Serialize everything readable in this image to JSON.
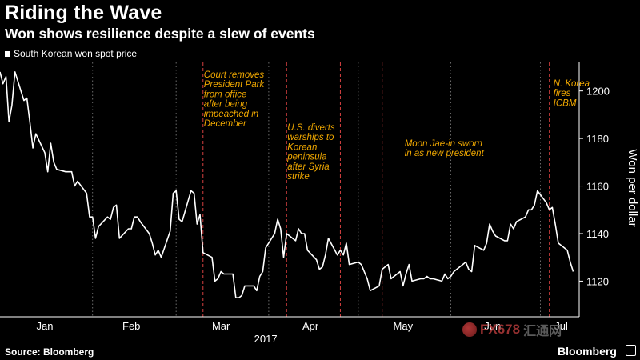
{
  "header": {
    "title": "Riding the Wave",
    "subtitle": "Won shows resilience despite a slew of events"
  },
  "footer": {
    "source": "Source: Bloomberg",
    "brand": "Bloomberg",
    "watermark_text": "FX678",
    "watermark_cn": "汇通网"
  },
  "colors": {
    "background": "#000000",
    "line": "#ffffff",
    "annotation": "#f0a800",
    "event_line": "#d64040",
    "month_line": "#6a6a6a"
  },
  "chart_data": {
    "type": "line",
    "title": "Riding the Wave",
    "subtitle": "Won shows resilience despite a slew of events",
    "ylabel": "Won per dollar",
    "xlabel": "2017",
    "y_axis_position": "right",
    "ylim": [
      1105,
      1212
    ],
    "yticks": [
      1120,
      1140,
      1160,
      1180,
      1200
    ],
    "xlim": [
      "2017-01-01",
      "2017-07-14"
    ],
    "x_ticks": [
      {
        "label": "Jan",
        "center": "2017-01-16"
      },
      {
        "label": "Feb",
        "center": "2017-02-14"
      },
      {
        "label": "Mar",
        "center": "2017-03-16"
      },
      {
        "label": "Apr",
        "center": "2017-04-15"
      },
      {
        "label": "May",
        "center": "2017-05-16"
      },
      {
        "label": "Jun",
        "center": "2017-06-15"
      },
      {
        "label": "Jul",
        "center": "2017-07-08"
      }
    ],
    "month_boundaries": [
      "2017-02-01",
      "2017-03-01",
      "2017-04-01",
      "2017-05-01",
      "2017-06-01",
      "2017-07-01"
    ],
    "legend": {
      "placement": "top-left",
      "entries": [
        "South Korean won spot price"
      ]
    },
    "grid": false,
    "series": [
      {
        "name": "South Korean won spot price",
        "x": [
          "2017-01-01",
          "2017-01-02",
          "2017-01-03",
          "2017-01-04",
          "2017-01-05",
          "2017-01-06",
          "2017-01-09",
          "2017-01-10",
          "2017-01-11",
          "2017-01-12",
          "2017-01-13",
          "2017-01-16",
          "2017-01-17",
          "2017-01-18",
          "2017-01-19",
          "2017-01-20",
          "2017-01-23",
          "2017-01-24",
          "2017-01-25",
          "2017-01-26",
          "2017-01-27",
          "2017-01-30",
          "2017-01-31",
          "2017-02-01",
          "2017-02-02",
          "2017-02-03",
          "2017-02-06",
          "2017-02-07",
          "2017-02-08",
          "2017-02-09",
          "2017-02-10",
          "2017-02-13",
          "2017-02-14",
          "2017-02-15",
          "2017-02-16",
          "2017-02-17",
          "2017-02-20",
          "2017-02-21",
          "2017-02-22",
          "2017-02-23",
          "2017-02-24",
          "2017-02-27",
          "2017-02-28",
          "2017-03-01",
          "2017-03-02",
          "2017-03-03",
          "2017-03-06",
          "2017-03-07",
          "2017-03-08",
          "2017-03-09",
          "2017-03-10",
          "2017-03-13",
          "2017-03-14",
          "2017-03-15",
          "2017-03-16",
          "2017-03-17",
          "2017-03-20",
          "2017-03-21",
          "2017-03-22",
          "2017-03-23",
          "2017-03-24",
          "2017-03-27",
          "2017-03-28",
          "2017-03-29",
          "2017-03-30",
          "2017-03-31",
          "2017-04-03",
          "2017-04-04",
          "2017-04-05",
          "2017-04-06",
          "2017-04-07",
          "2017-04-10",
          "2017-04-11",
          "2017-04-12",
          "2017-04-13",
          "2017-04-14",
          "2017-04-17",
          "2017-04-18",
          "2017-04-19",
          "2017-04-20",
          "2017-04-21",
          "2017-04-24",
          "2017-04-25",
          "2017-04-26",
          "2017-04-27",
          "2017-04-28",
          "2017-05-01",
          "2017-05-02",
          "2017-05-04",
          "2017-05-05",
          "2017-05-08",
          "2017-05-09",
          "2017-05-10",
          "2017-05-11",
          "2017-05-12",
          "2017-05-15",
          "2017-05-16",
          "2017-05-17",
          "2017-05-18",
          "2017-05-19",
          "2017-05-22",
          "2017-05-23",
          "2017-05-24",
          "2017-05-25",
          "2017-05-26",
          "2017-05-29",
          "2017-05-30",
          "2017-05-31",
          "2017-06-01",
          "2017-06-02",
          "2017-06-05",
          "2017-06-06",
          "2017-06-07",
          "2017-06-08",
          "2017-06-09",
          "2017-06-12",
          "2017-06-13",
          "2017-06-14",
          "2017-06-15",
          "2017-06-16",
          "2017-06-19",
          "2017-06-20",
          "2017-06-21",
          "2017-06-22",
          "2017-06-23",
          "2017-06-26",
          "2017-06-27",
          "2017-06-28",
          "2017-06-29",
          "2017-06-30",
          "2017-07-03",
          "2017-07-04",
          "2017-07-05",
          "2017-07-06",
          "2017-07-07",
          "2017-07-10",
          "2017-07-11",
          "2017-07-12"
        ],
        "values": [
          1208,
          1203,
          1206,
          1187,
          1194,
          1208,
          1196,
          1197,
          1187,
          1176,
          1182,
          1174,
          1166,
          1178,
          1170,
          1167,
          1166,
          1166,
          1166,
          1160,
          1162,
          1157,
          1147,
          1147,
          1138,
          1143,
          1147,
          1146,
          1151,
          1152,
          1138,
          1142,
          1142,
          1147,
          1147,
          1145,
          1140,
          1136,
          1131,
          1133,
          1130,
          1141,
          1157,
          1158,
          1146,
          1145,
          1158,
          1157,
          1144,
          1148,
          1132,
          1130,
          1120,
          1121,
          1124,
          1123,
          1123,
          1113,
          1113,
          1114,
          1118,
          1118,
          1116,
          1122,
          1124,
          1134,
          1140,
          1146,
          1142,
          1130,
          1140,
          1137,
          1142,
          1140,
          1140,
          1133,
          1129,
          1125,
          1126,
          1131,
          1138,
          1131,
          1133,
          1131,
          1136,
          1127,
          1128,
          1127,
          1121,
          1116,
          1118,
          1125,
          1126,
          1127,
          1121,
          1124,
          1118,
          1123,
          1127,
          1120,
          1121,
          1121,
          1122,
          1121,
          1121,
          1120,
          1123,
          1121,
          1122,
          1124,
          1127,
          1128,
          1125,
          1124,
          1135,
          1133,
          1136,
          1144,
          1141,
          1139,
          1137,
          1137,
          1144,
          1142,
          1145,
          1147,
          1150,
          1150,
          1152,
          1158,
          1153,
          1150,
          1151,
          1144,
          1136,
          1133,
          1128,
          1124
        ]
      }
    ],
    "events": [
      {
        "date": "2017-03-10",
        "text": [
          "Court removes",
          "President Park",
          "from office",
          "after being",
          "impeached in",
          "December"
        ]
      },
      {
        "date": "2017-04-07",
        "text": [
          "U.S. diverts",
          "warships to",
          "Korean",
          "peninsula",
          "after Syria",
          "strike"
        ]
      },
      {
        "date": "2017-04-25",
        "text": []
      },
      {
        "date": "2017-05-09",
        "text": [
          "Moon Jae-in sworn",
          "in as new president"
        ]
      },
      {
        "date": "2017-07-04",
        "text": [
          "N. Korea",
          "fires",
          "ICBM"
        ]
      }
    ]
  }
}
